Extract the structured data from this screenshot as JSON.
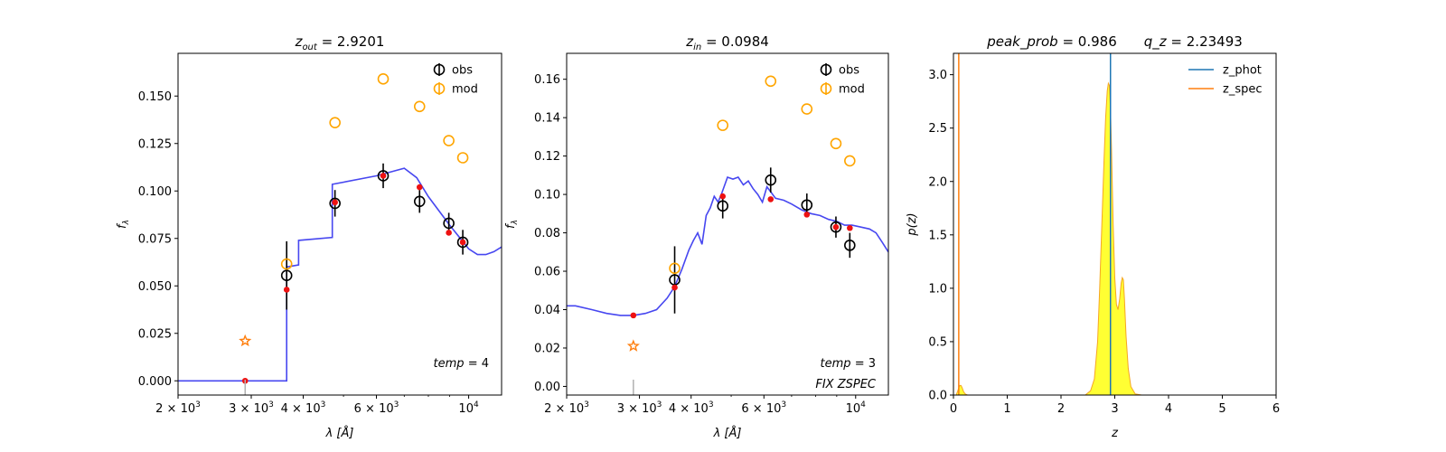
{
  "chart_data": [
    {
      "type": "scatter",
      "title": "z_out = 2.9201",
      "title_parts": {
        "var": "z",
        "sub": "out",
        "value": "= 2.9201"
      },
      "xlabel": "λ [Å]",
      "ylabel": "f_λ",
      "xscale": "log",
      "xlim": [
        2000,
        12000
      ],
      "ylim": [
        -0.0075,
        0.1725
      ],
      "xticks": [
        2000,
        3000,
        4000,
        6000,
        10000
      ],
      "xtick_labels": [
        {
          "base": "2 × 10",
          "exp": "3"
        },
        {
          "base": "3 × 10",
          "exp": "3"
        },
        {
          "base": "4 × 10",
          "exp": "3"
        },
        {
          "base": "6 × 10",
          "exp": "3"
        },
        {
          "base": "10",
          "exp": "4"
        }
      ],
      "yticks": [
        0.0,
        0.025,
        0.05,
        0.075,
        0.1,
        0.125,
        0.15
      ],
      "ytick_labels": [
        "0.000",
        "0.025",
        "0.050",
        "0.075",
        "0.100",
        "0.125",
        "0.150"
      ],
      "legend": {
        "placement": "top-right",
        "entries": [
          "obs",
          "mod"
        ]
      },
      "annotations": [
        "temp = 4"
      ],
      "annotation_parts": [
        {
          "var": "temp",
          "value": "= 4"
        }
      ],
      "series": [
        {
          "name": "obs",
          "kind": "errorbar",
          "x": [
            3650,
            4770,
            6230,
            7620,
            8960,
            9680
          ],
          "y": [
            0.0555,
            0.0935,
            0.108,
            0.0945,
            0.083,
            0.073
          ],
          "yerr": [
            0.018,
            0.007,
            0.0065,
            0.006,
            0.0055,
            0.0065
          ]
        },
        {
          "name": "mod",
          "kind": "open-circle",
          "x": [
            3650,
            4770,
            6230,
            7620,
            8960,
            9680
          ],
          "y": [
            0.0615,
            0.136,
            0.159,
            0.1445,
            0.1265,
            0.1175
          ]
        },
        {
          "kind": "dot",
          "x": [
            2900,
            3650,
            4770,
            6230,
            7620,
            8960,
            9680
          ],
          "y": [
            0.0,
            0.048,
            0.094,
            0.108,
            0.102,
            0.078,
            0.073
          ]
        },
        {
          "kind": "star",
          "x": [
            2900
          ],
          "y": [
            0.021
          ]
        },
        {
          "kind": "line",
          "x": [
            2000,
            3400,
            3400,
            3650,
            3650,
            3900,
            3900,
            4700,
            4700,
            6000,
            7000,
            7500,
            8000,
            9000,
            10000,
            10500,
            11000,
            11500,
            12000
          ],
          "y": [
            0.0,
            0.0,
            0.0,
            0.0,
            0.06,
            0.061,
            0.074,
            0.0755,
            0.1035,
            0.108,
            0.112,
            0.107,
            0.097,
            0.082,
            0.0695,
            0.0665,
            0.0665,
            0.068,
            0.0705
          ]
        },
        {
          "kind": "marker-line",
          "x": [
            2900
          ],
          "y": [
            0.0
          ]
        }
      ]
    },
    {
      "type": "scatter",
      "title": "z_in = 0.0984",
      "title_parts": {
        "var": "z",
        "sub": "in",
        "value": "= 0.0984"
      },
      "xlabel": "λ [Å]",
      "ylabel": "f_λ",
      "xscale": "log",
      "xlim": [
        2000,
        12000
      ],
      "ylim": [
        -0.0045,
        0.1735
      ],
      "xticks": [
        2000,
        3000,
        4000,
        6000,
        10000
      ],
      "xtick_labels": [
        {
          "base": "2 × 10",
          "exp": "3"
        },
        {
          "base": "3 × 10",
          "exp": "3"
        },
        {
          "base": "4 × 10",
          "exp": "3"
        },
        {
          "base": "6 × 10",
          "exp": "3"
        },
        {
          "base": "10",
          "exp": "4"
        }
      ],
      "yticks": [
        0.0,
        0.02,
        0.04,
        0.06,
        0.08,
        0.1,
        0.12,
        0.14,
        0.16
      ],
      "ytick_labels": [
        "0.00",
        "0.02",
        "0.04",
        "0.06",
        "0.08",
        "0.10",
        "0.12",
        "0.14",
        "0.16"
      ],
      "legend": {
        "placement": "top-right",
        "entries": [
          "obs",
          "mod"
        ]
      },
      "annotations": [
        "temp = 3",
        "FIX ZSPEC"
      ],
      "annotation_parts": [
        {
          "var": "temp",
          "value": "= 3"
        },
        {
          "text": "FIX ZSPEC"
        }
      ],
      "series": [
        {
          "name": "obs",
          "kind": "errorbar",
          "x": [
            3650,
            4770,
            6230,
            7620,
            8960,
            9680
          ],
          "y": [
            0.0555,
            0.094,
            0.1075,
            0.0945,
            0.083,
            0.0735
          ],
          "yerr": [
            0.0175,
            0.0065,
            0.0065,
            0.006,
            0.0055,
            0.0065
          ]
        },
        {
          "name": "mod",
          "kind": "open-circle",
          "x": [
            3650,
            4770,
            6230,
            7620,
            8960,
            9680
          ],
          "y": [
            0.0615,
            0.136,
            0.159,
            0.1445,
            0.1265,
            0.1175
          ]
        },
        {
          "kind": "dot",
          "x": [
            2900,
            3650,
            4770,
            6230,
            7620,
            8960,
            9680
          ],
          "y": [
            0.037,
            0.0515,
            0.099,
            0.0975,
            0.0895,
            0.083,
            0.0825
          ]
        },
        {
          "kind": "star",
          "x": [
            2900
          ],
          "y": [
            0.021
          ]
        },
        {
          "kind": "line",
          "x": [
            2000,
            2100,
            2300,
            2500,
            2700,
            2900,
            3100,
            3300,
            3500,
            3650,
            3800,
            3950,
            4050,
            4150,
            4250,
            4350,
            4450,
            4550,
            4650,
            4750,
            4900,
            5050,
            5200,
            5350,
            5500,
            5650,
            5800,
            5950,
            6100,
            6250,
            6400,
            6700,
            7000,
            7400,
            7800,
            8200,
            8600,
            9000,
            9400,
            9800,
            10300,
            10800,
            11200,
            11600,
            12000
          ],
          "y": [
            0.042,
            0.042,
            0.04,
            0.038,
            0.037,
            0.037,
            0.038,
            0.04,
            0.046,
            0.052,
            0.061,
            0.071,
            0.076,
            0.08,
            0.074,
            0.089,
            0.093,
            0.099,
            0.096,
            0.101,
            0.109,
            0.108,
            0.109,
            0.105,
            0.107,
            0.103,
            0.1,
            0.096,
            0.104,
            0.101,
            0.098,
            0.097,
            0.095,
            0.092,
            0.09,
            0.089,
            0.087,
            0.086,
            0.084,
            0.084,
            0.083,
            0.082,
            0.08,
            0.075,
            0.07
          ]
        },
        {
          "kind": "marker-line",
          "x": [
            2900
          ],
          "y": [
            0.0
          ]
        }
      ]
    },
    {
      "type": "area",
      "title": "peak_prob = 0.986   q_z = 2.23493",
      "title_parts": [
        {
          "var": "peak_prob",
          "value": "= 0.986"
        },
        {
          "var": "q_z",
          "value": "= 2.23493"
        }
      ],
      "xlabel": "z",
      "ylabel": "p(z)",
      "xlim": [
        0,
        6
      ],
      "ylim": [
        0,
        3.2
      ],
      "xticks": [
        0,
        1,
        2,
        3,
        4,
        5,
        6
      ],
      "xtick_labels": [
        "0",
        "1",
        "2",
        "3",
        "4",
        "5",
        "6"
      ],
      "yticks": [
        0.0,
        0.5,
        1.0,
        1.5,
        2.0,
        2.5,
        3.0
      ],
      "ytick_labels": [
        "0.0",
        "0.5",
        "1.0",
        "1.5",
        "2.0",
        "2.5",
        "3.0"
      ],
      "legend": {
        "placement": "top-right",
        "entries": [
          "z_phot",
          "z_spec"
        ]
      },
      "colors": {
        "z_phot": "#1f77b4",
        "z_spec": "#ff7f0e",
        "fill": "#ffff33"
      },
      "series": [
        {
          "kind": "filled-curve",
          "x": [
            0.0,
            0.05,
            0.08,
            0.1,
            0.12,
            0.14,
            0.16,
            0.19,
            0.22,
            0.26,
            0.3,
            2.45,
            2.55,
            2.62,
            2.68,
            2.72,
            2.76,
            2.8,
            2.83,
            2.86,
            2.88,
            2.9,
            2.92,
            2.94,
            2.97,
            3.0,
            3.03,
            3.06,
            3.09,
            3.12,
            3.14,
            3.16,
            3.18,
            3.21,
            3.25,
            3.3,
            3.38,
            3.5,
            5.0
          ],
          "y": [
            0.0,
            0.0,
            0.04,
            0.07,
            0.09,
            0.09,
            0.07,
            0.03,
            0.01,
            0.0,
            0.0,
            0.0,
            0.04,
            0.15,
            0.5,
            1.0,
            1.6,
            2.2,
            2.6,
            2.85,
            2.92,
            2.9,
            2.7,
            2.3,
            1.6,
            1.1,
            0.85,
            0.8,
            0.9,
            1.05,
            1.1,
            1.08,
            0.9,
            0.55,
            0.25,
            0.08,
            0.01,
            0.0,
            0.0
          ]
        },
        {
          "name": "z_phot",
          "kind": "vline",
          "x": [
            2.9201
          ]
        },
        {
          "name": "z_spec",
          "kind": "vline",
          "x": [
            0.0984
          ]
        }
      ]
    }
  ]
}
